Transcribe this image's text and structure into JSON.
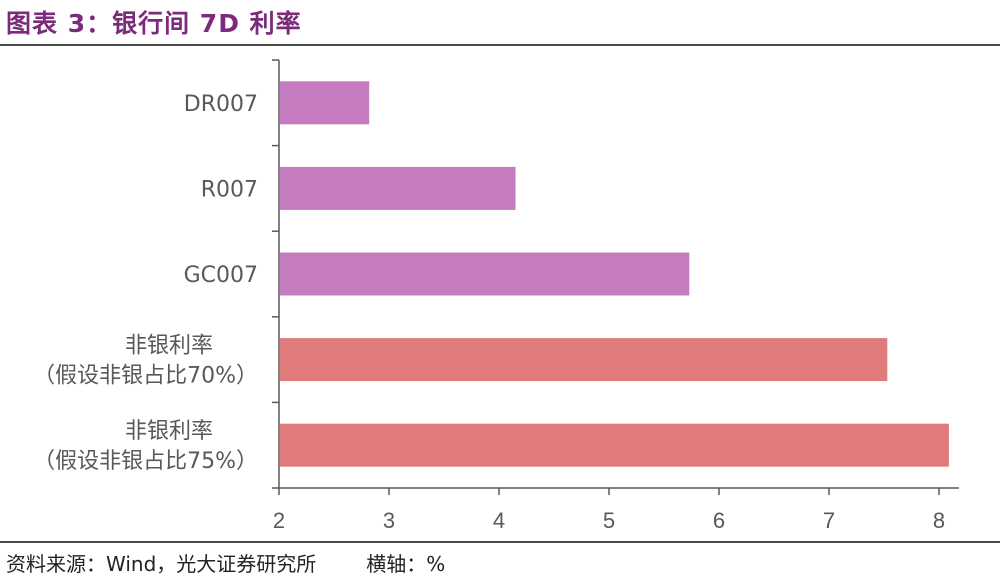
{
  "title": "图表 3：银行间 7D 利率",
  "footer": {
    "source": "资料来源：Wind，光大证券研究所",
    "axis_note": "横轴：%"
  },
  "colors": {
    "title": "#7b2a7c",
    "bar_purple": "#c57bbf",
    "bar_red": "#e07b7b",
    "axis": "#595959"
  },
  "chart_data": {
    "type": "bar",
    "orientation": "horizontal",
    "categories": [
      [
        "DR007"
      ],
      [
        "R007"
      ],
      [
        "GC007"
      ],
      [
        "非银利率",
        "（假设非银占比70%）"
      ],
      [
        "非银利率",
        "（假设非银占比75%）"
      ]
    ],
    "values": [
      2.82,
      4.15,
      5.73,
      7.53,
      8.09
    ],
    "bar_colors": [
      "#c57bbf",
      "#c57bbf",
      "#c57bbf",
      "#e07b7b",
      "#e07b7b"
    ],
    "xlim": [
      2,
      8
    ],
    "xticks": [
      2,
      3,
      4,
      5,
      6,
      7,
      8
    ],
    "xlabel": "",
    "ylabel": "",
    "grid": false,
    "legend": false
  }
}
